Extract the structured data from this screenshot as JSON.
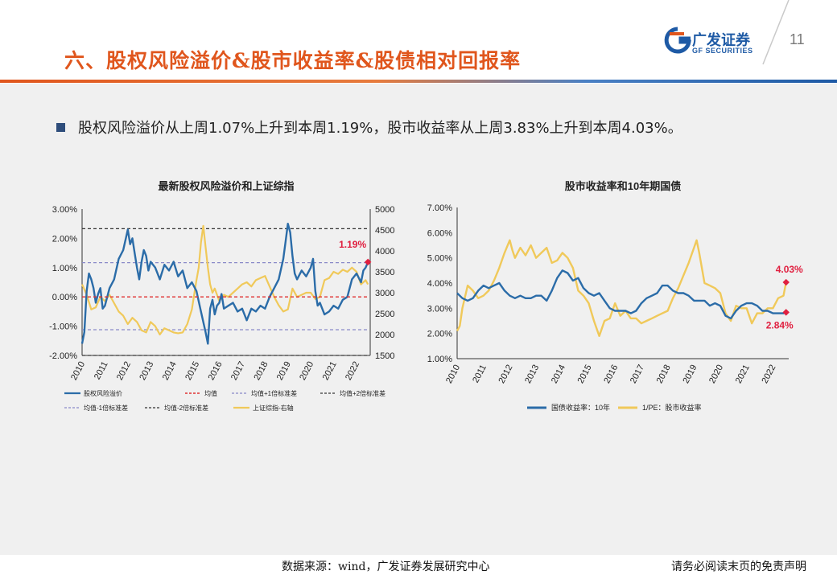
{
  "header": {
    "title": "六、股权风险溢价&股市收益率&股债相对回报率",
    "logo_cn": "广发证券",
    "logo_en": "GF SECURITIES",
    "page_number": "11"
  },
  "bullet": "股权风险溢价从上周1.07%上升到本周1.19%，股市收益率从上周3.83%上升到本周4.03%。",
  "footer": {
    "source": "数据来源：wind，广发证券发展研究中心",
    "disclaimer": "请务必阅读末页的免责声明"
  },
  "colors": {
    "title": "#e0561d",
    "blue_series": "#2b6ca8",
    "yellow_series": "#f0c95a",
    "mean_line": "#e03030",
    "std1_line": "#8a8ac8",
    "std2_line": "#333333",
    "highlight": "#e02040"
  },
  "chart_data": [
    {
      "type": "line",
      "title": "最新股权风险溢价和上证综指",
      "x_ticks": [
        "2010",
        "2011",
        "2012",
        "2013",
        "2014",
        "2015",
        "2016",
        "2017",
        "2018",
        "2019",
        "2020",
        "2021",
        "2022"
      ],
      "y_left_ticks": [
        "-2.00%",
        "-1.00%",
        "0.00%",
        "1.00%",
        "2.00%",
        "3.00%"
      ],
      "y_left_lim": [
        -2.0,
        3.0
      ],
      "y_right_ticks": [
        "1500",
        "2000",
        "2500",
        "3000",
        "3500",
        "4000",
        "4500",
        "5000"
      ],
      "y_right_lim": [
        1500,
        5000
      ],
      "annotation": "1.19%",
      "ref_lines": {
        "mean": 0.0,
        "plus1": 1.17,
        "plus2": 2.33,
        "minus1": -1.12,
        "minus2": -2.0
      },
      "series": [
        {
          "name": "股权风险溢价",
          "axis": "left",
          "x": [
            2010.0,
            2010.1,
            2010.2,
            2010.3,
            2010.4,
            2010.5,
            2010.6,
            2010.7,
            2010.8,
            2010.9,
            2011.0,
            2011.2,
            2011.4,
            2011.6,
            2011.8,
            2012.0,
            2012.1,
            2012.2,
            2012.3,
            2012.4,
            2012.5,
            2012.6,
            2012.7,
            2012.8,
            2012.9,
            2013.0,
            2013.2,
            2013.4,
            2013.6,
            2013.8,
            2014.0,
            2014.2,
            2014.4,
            2014.6,
            2014.8,
            2015.0,
            2015.2,
            2015.4,
            2015.5,
            2015.6,
            2015.7,
            2015.8,
            2015.9,
            2016.0,
            2016.1,
            2016.2,
            2016.4,
            2016.6,
            2016.8,
            2017.0,
            2017.2,
            2017.4,
            2017.6,
            2017.8,
            2018.0,
            2018.2,
            2018.4,
            2018.6,
            2018.8,
            2018.9,
            2019.0,
            2019.1,
            2019.2,
            2019.3,
            2019.4,
            2019.6,
            2019.8,
            2020.0,
            2020.1,
            2020.2,
            2020.3,
            2020.4,
            2020.6,
            2020.8,
            2021.0,
            2021.2,
            2021.4,
            2021.6,
            2021.8,
            2022.0,
            2022.2,
            2022.3,
            2022.4,
            2022.5
          ],
          "values": [
            -1.6,
            -1.2,
            0.2,
            0.8,
            0.6,
            0.3,
            -0.2,
            0.1,
            0.3,
            -0.4,
            -0.3,
            0.3,
            0.6,
            1.3,
            1.6,
            2.3,
            1.8,
            2.0,
            1.5,
            1.0,
            0.6,
            1.2,
            1.6,
            1.4,
            0.9,
            1.2,
            1.0,
            0.6,
            1.1,
            0.9,
            1.2,
            0.7,
            0.9,
            0.3,
            0.5,
            0.2,
            -0.5,
            -1.2,
            -1.6,
            -0.4,
            -0.1,
            -0.6,
            -0.3,
            -0.2,
            0.1,
            -0.4,
            -0.3,
            -0.2,
            -0.5,
            -0.4,
            -0.8,
            -0.4,
            -0.5,
            -0.3,
            -0.4,
            0.0,
            0.3,
            0.6,
            1.3,
            1.9,
            2.5,
            2.2,
            1.4,
            0.8,
            0.6,
            0.9,
            0.7,
            1.0,
            1.3,
            0.2,
            -0.3,
            -0.2,
            -0.6,
            -0.5,
            -0.3,
            -0.4,
            -0.1,
            0.0,
            0.6,
            0.8,
            0.5,
            0.9,
            1.0,
            1.19
          ]
        },
        {
          "name": "均值",
          "axis": "left",
          "x": [
            2010.0,
            2022.5
          ],
          "values": [
            0.0,
            0.0
          ]
        },
        {
          "name": "均值+1倍标准差",
          "axis": "left",
          "x": [
            2010.0,
            2022.5
          ],
          "values": [
            1.17,
            1.17
          ]
        },
        {
          "name": "均值+2倍标准差",
          "axis": "left",
          "x": [
            2010.0,
            2022.5
          ],
          "values": [
            2.33,
            2.33
          ]
        },
        {
          "name": "均值-1倍标准差",
          "axis": "left",
          "x": [
            2010.0,
            2022.5
          ],
          "values": [
            -1.12,
            -1.12
          ]
        },
        {
          "name": "均值-2倍标准差",
          "axis": "left",
          "x": [
            2010.0,
            2022.5
          ],
          "values": [
            -2.0,
            -2.0
          ]
        },
        {
          "name": "上证综指-右轴",
          "axis": "right",
          "x": [
            2010.0,
            2010.2,
            2010.4,
            2010.6,
            2010.8,
            2011.0,
            2011.2,
            2011.4,
            2011.6,
            2011.8,
            2012.0,
            2012.2,
            2012.4,
            2012.6,
            2012.8,
            2013.0,
            2013.2,
            2013.4,
            2013.6,
            2013.8,
            2014.0,
            2014.2,
            2014.4,
            2014.6,
            2014.8,
            2015.0,
            2015.1,
            2015.2,
            2015.3,
            2015.4,
            2015.5,
            2015.6,
            2015.7,
            2015.8,
            2016.0,
            2016.2,
            2016.4,
            2016.6,
            2016.8,
            2017.0,
            2017.2,
            2017.4,
            2017.6,
            2017.8,
            2018.0,
            2018.2,
            2018.4,
            2018.6,
            2018.8,
            2019.0,
            2019.2,
            2019.4,
            2019.6,
            2019.8,
            2020.0,
            2020.2,
            2020.4,
            2020.6,
            2020.8,
            2021.0,
            2021.2,
            2021.4,
            2021.6,
            2021.8,
            2022.0,
            2022.2,
            2022.4,
            2022.5
          ],
          "values": [
            3200,
            2950,
            2600,
            2650,
            2900,
            2800,
            2950,
            2750,
            2550,
            2450,
            2250,
            2400,
            2300,
            2100,
            2050,
            2300,
            2200,
            2000,
            2150,
            2100,
            2050,
            2030,
            2050,
            2250,
            2600,
            3300,
            3600,
            4200,
            4600,
            4100,
            3600,
            3200,
            3000,
            3100,
            2800,
            2950,
            2900,
            3000,
            3100,
            3200,
            3250,
            3150,
            3300,
            3350,
            3400,
            3150,
            2900,
            2700,
            2550,
            2600,
            3100,
            2900,
            2950,
            3000,
            3000,
            2850,
            2900,
            3300,
            3350,
            3500,
            3450,
            3550,
            3500,
            3600,
            3500,
            3200,
            3300,
            3200
          ]
        }
      ]
    },
    {
      "type": "line",
      "title": "股市收益率和10年期国债",
      "x_ticks": [
        "2010",
        "2011",
        "2012",
        "2013",
        "2014",
        "2015",
        "2016",
        "2017",
        "2018",
        "2019",
        "2020",
        "2021",
        "2022"
      ],
      "y_ticks": [
        "1.00%",
        "2.00%",
        "3.00%",
        "4.00%",
        "5.00%",
        "6.00%",
        "7.00%"
      ],
      "ylim": [
        1.0,
        7.0
      ],
      "annotations": [
        "4.03%",
        "2.84%"
      ],
      "series": [
        {
          "name": "国债收益率：10年",
          "x": [
            2010.0,
            2010.2,
            2010.4,
            2010.6,
            2010.8,
            2011.0,
            2011.2,
            2011.4,
            2011.6,
            2011.8,
            2012.0,
            2012.2,
            2012.4,
            2012.6,
            2012.8,
            2013.0,
            2013.2,
            2013.4,
            2013.6,
            2013.8,
            2014.0,
            2014.2,
            2014.4,
            2014.6,
            2014.8,
            2015.0,
            2015.2,
            2015.4,
            2015.6,
            2015.8,
            2016.0,
            2016.2,
            2016.4,
            2016.6,
            2016.8,
            2017.0,
            2017.2,
            2017.4,
            2017.6,
            2017.8,
            2018.0,
            2018.2,
            2018.4,
            2018.6,
            2018.8,
            2019.0,
            2019.2,
            2019.4,
            2019.6,
            2019.8,
            2020.0,
            2020.2,
            2020.4,
            2020.6,
            2020.8,
            2021.0,
            2021.2,
            2021.4,
            2021.6,
            2021.8,
            2022.0,
            2022.2,
            2022.4,
            2022.5
          ],
          "values": [
            3.6,
            3.4,
            3.3,
            3.4,
            3.7,
            3.9,
            3.8,
            3.9,
            4.0,
            3.7,
            3.5,
            3.4,
            3.5,
            3.4,
            3.4,
            3.5,
            3.5,
            3.3,
            3.7,
            4.2,
            4.5,
            4.4,
            4.1,
            4.2,
            3.8,
            3.6,
            3.5,
            3.6,
            3.3,
            3.0,
            2.9,
            2.9,
            2.9,
            2.8,
            2.9,
            3.2,
            3.4,
            3.5,
            3.6,
            3.9,
            3.9,
            3.7,
            3.6,
            3.6,
            3.5,
            3.3,
            3.3,
            3.3,
            3.1,
            3.2,
            3.1,
            2.7,
            2.6,
            2.9,
            3.1,
            3.2,
            3.2,
            3.1,
            2.9,
            2.9,
            2.8,
            2.8,
            2.8,
            2.84
          ]
        },
        {
          "name": "1/PE：股市收益率",
          "x": [
            2010.0,
            2010.1,
            2010.2,
            2010.4,
            2010.6,
            2010.8,
            2011.0,
            2011.2,
            2011.4,
            2011.6,
            2011.8,
            2012.0,
            2012.1,
            2012.2,
            2012.4,
            2012.6,
            2012.8,
            2013.0,
            2013.2,
            2013.4,
            2013.6,
            2013.8,
            2014.0,
            2014.2,
            2014.4,
            2014.6,
            2014.8,
            2015.0,
            2015.2,
            2015.4,
            2015.6,
            2015.8,
            2016.0,
            2016.2,
            2016.4,
            2016.6,
            2016.8,
            2017.0,
            2017.2,
            2017.4,
            2017.6,
            2017.8,
            2018.0,
            2018.2,
            2018.4,
            2018.6,
            2018.8,
            2019.0,
            2019.1,
            2019.2,
            2019.4,
            2019.6,
            2019.8,
            2020.0,
            2020.2,
            2020.4,
            2020.6,
            2020.8,
            2021.0,
            2021.2,
            2021.4,
            2021.6,
            2021.8,
            2022.0,
            2022.2,
            2022.4,
            2022.5
          ],
          "values": [
            2.1,
            2.3,
            3.0,
            3.9,
            3.7,
            3.4,
            3.5,
            3.7,
            4.1,
            4.6,
            5.2,
            5.7,
            5.3,
            5.0,
            5.4,
            5.1,
            5.5,
            5.0,
            5.2,
            5.4,
            4.8,
            4.9,
            5.2,
            5.0,
            4.6,
            3.7,
            3.5,
            3.2,
            2.5,
            1.9,
            2.5,
            2.6,
            3.2,
            2.7,
            2.9,
            2.6,
            2.6,
            2.4,
            2.5,
            2.6,
            2.7,
            2.8,
            2.9,
            3.4,
            3.8,
            4.3,
            4.8,
            5.4,
            5.7,
            5.2,
            4.0,
            3.9,
            3.8,
            3.6,
            2.8,
            2.5,
            3.1,
            3.0,
            3.0,
            2.4,
            2.8,
            2.8,
            3.0,
            3.0,
            3.4,
            3.5,
            4.03
          ]
        }
      ]
    }
  ]
}
